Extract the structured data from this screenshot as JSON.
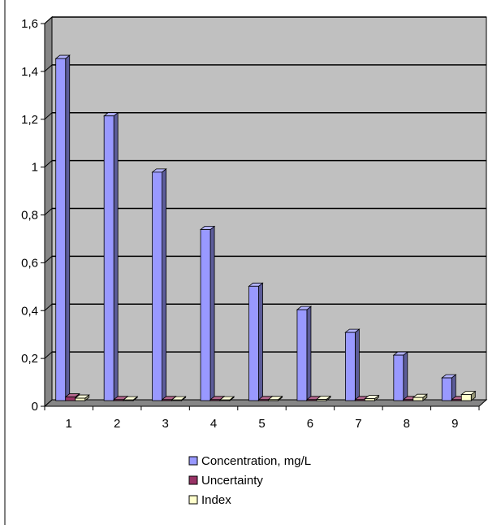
{
  "chart_data": {
    "type": "bar",
    "categories": [
      "1",
      "2",
      "3",
      "4",
      "5",
      "6",
      "7",
      "8",
      "9"
    ],
    "series": [
      {
        "name": "Concentration, mg/L",
        "values": [
          1.43,
          1.19,
          0.955,
          0.715,
          0.478,
          0.38,
          0.285,
          0.19,
          0.095
        ],
        "color": "#9999ff"
      },
      {
        "name": "Uncertainty",
        "values": [
          0.015,
          0.004,
          0.004,
          0.004,
          0.004,
          0.004,
          0.004,
          0.004,
          0.004
        ],
        "color": "#993366"
      },
      {
        "name": "Index",
        "values": [
          0.01,
          0.003,
          0.003,
          0.003,
          0.004,
          0.005,
          0.008,
          0.013,
          0.025
        ],
        "color": "#ffffcc"
      }
    ],
    "ylim": [
      0,
      1.6
    ],
    "yticks": [
      "0",
      "0,2",
      "0,4",
      "0,6",
      "0,8",
      "1",
      "1,2",
      "1,4",
      "1,6"
    ],
    "grid": true,
    "legend_position": "bottom",
    "colors": {
      "plot_background": "#c0c0c0",
      "gridline": "#000000"
    }
  }
}
